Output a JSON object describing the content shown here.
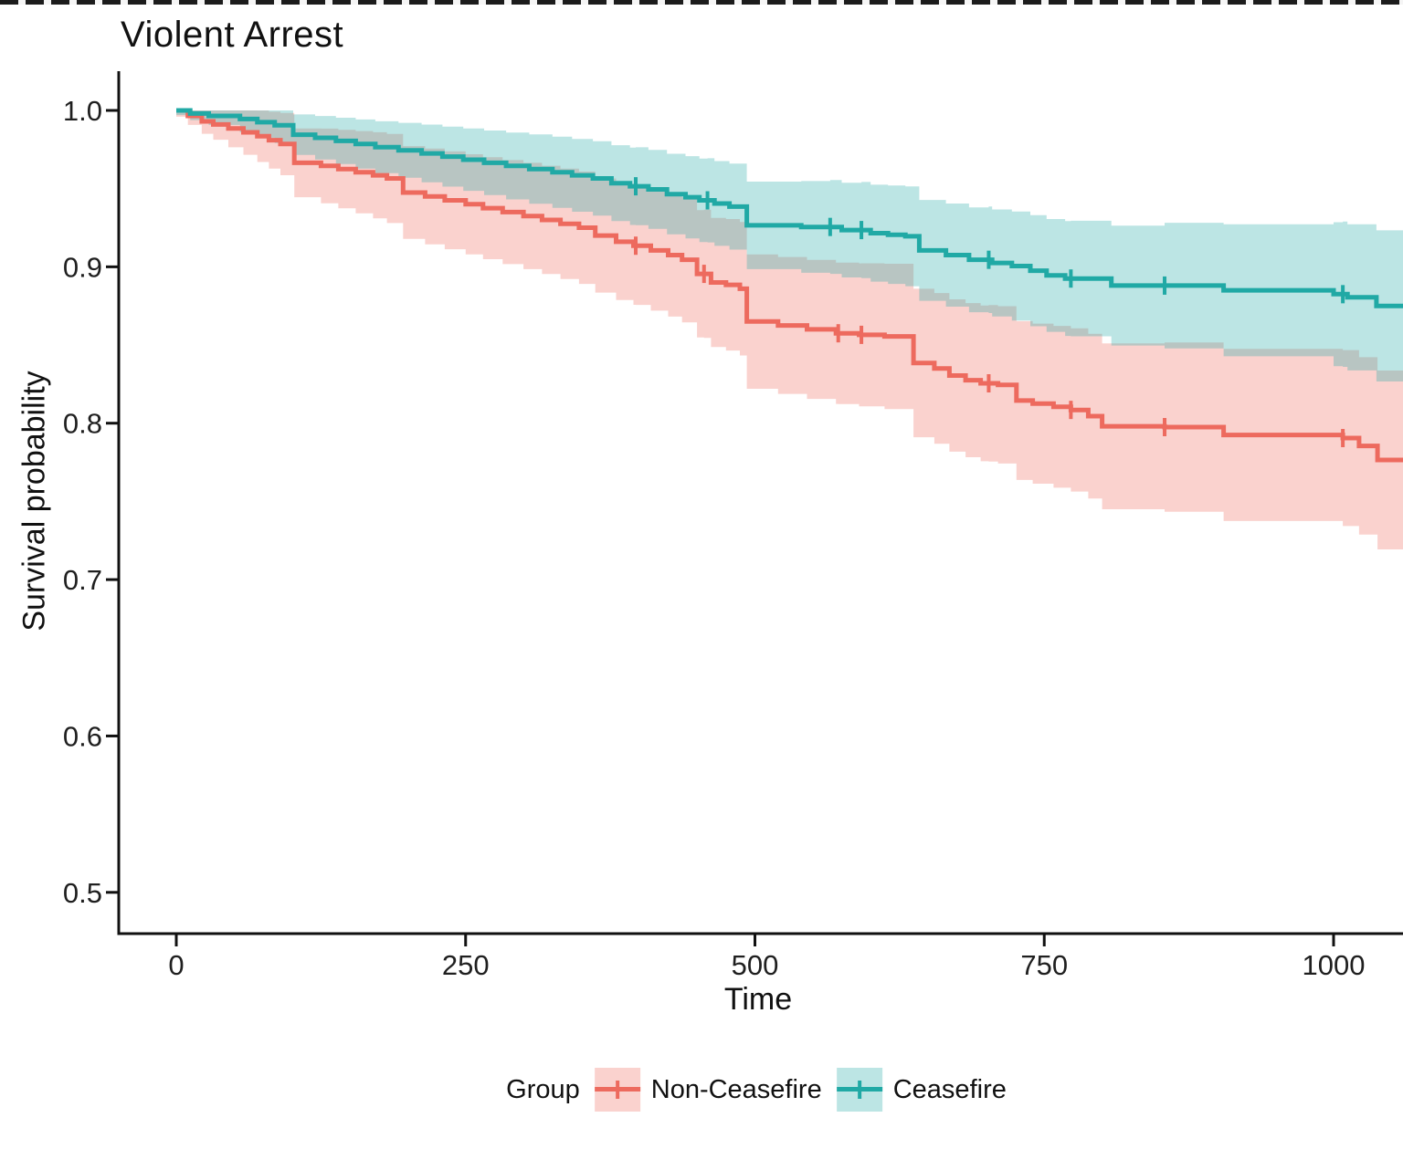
{
  "chart_data": {
    "type": "line",
    "subtype": "kaplan_meier_step",
    "title": "Violent Arrest",
    "xlabel": "Time",
    "ylabel": "Survival probability",
    "x_ticks": [
      0,
      250,
      500,
      750,
      1000
    ],
    "y_ticks": [
      {
        "value": 1.0,
        "label": "1.0"
      },
      {
        "value": 0.9,
        "label": "0.9"
      },
      {
        "value": 0.8,
        "label": "0.8"
      },
      {
        "value": 0.7,
        "label": "0.7"
      },
      {
        "value": 0.6,
        "label": "0.6"
      },
      {
        "value": 0.5,
        "label": "0.5"
      }
    ],
    "xlim": [
      0,
      1064
    ],
    "ylim": [
      0.474,
      1.027
    ],
    "grid": false,
    "axis_color": "#111111",
    "tick_text_color": "#1f1f1f",
    "legend": {
      "title": "Group",
      "position": "bottom"
    },
    "series": [
      {
        "name": "Non-Ceasefire",
        "color": "#ED6A5E",
        "ribbon_opacity": 0.3,
        "steps": [
          [
            0,
            1.0
          ],
          [
            10,
            0.9965
          ],
          [
            22,
            0.993
          ],
          [
            32,
            0.991
          ],
          [
            45,
            0.9885
          ],
          [
            58,
            0.986
          ],
          [
            70,
            0.9835
          ],
          [
            80,
            0.981
          ],
          [
            90,
            0.9785
          ],
          [
            102,
            0.9665
          ],
          [
            125,
            0.9645
          ],
          [
            140,
            0.9625
          ],
          [
            155,
            0.9605
          ],
          [
            170,
            0.9585
          ],
          [
            182,
            0.9565
          ],
          [
            196,
            0.9475
          ],
          [
            215,
            0.945
          ],
          [
            232,
            0.9425
          ],
          [
            250,
            0.94
          ],
          [
            265,
            0.9375
          ],
          [
            282,
            0.935
          ],
          [
            300,
            0.9325
          ],
          [
            316,
            0.93
          ],
          [
            332,
            0.9275
          ],
          [
            348,
            0.925
          ],
          [
            362,
            0.92
          ],
          [
            380,
            0.916
          ],
          [
            395,
            0.9135
          ],
          [
            410,
            0.9105
          ],
          [
            425,
            0.9075
          ],
          [
            437,
            0.9045
          ],
          [
            450,
            0.8955
          ],
          [
            462,
            0.89
          ],
          [
            475,
            0.8885
          ],
          [
            487,
            0.886
          ],
          [
            493,
            0.865
          ],
          [
            520,
            0.8625
          ],
          [
            545,
            0.86
          ],
          [
            570,
            0.8575
          ],
          [
            590,
            0.8565
          ],
          [
            612,
            0.8555
          ],
          [
            637,
            0.8385
          ],
          [
            655,
            0.835
          ],
          [
            668,
            0.8305
          ],
          [
            682,
            0.8275
          ],
          [
            695,
            0.8255
          ],
          [
            710,
            0.8245
          ],
          [
            726,
            0.8145
          ],
          [
            740,
            0.8125
          ],
          [
            758,
            0.8105
          ],
          [
            773,
            0.8085
          ],
          [
            788,
            0.8045
          ],
          [
            800,
            0.798
          ],
          [
            854,
            0.7975
          ],
          [
            905,
            0.7925
          ],
          [
            1008,
            0.7905
          ],
          [
            1022,
            0.7855
          ],
          [
            1038,
            0.7765
          ],
          [
            1064,
            0.776
          ]
        ],
        "censor_times": [
          397,
          456,
          572,
          592,
          702,
          773,
          854,
          1008
        ],
        "ci_halfwidth": [
          [
            0,
            0.004
          ],
          [
            50,
            0.013
          ],
          [
            102,
            0.022
          ],
          [
            200,
            0.03
          ],
          [
            300,
            0.034
          ],
          [
            400,
            0.038
          ],
          [
            493,
            0.043
          ],
          [
            600,
            0.046
          ],
          [
            700,
            0.05
          ],
          [
            800,
            0.053
          ],
          [
            900,
            0.055
          ],
          [
            1000,
            0.056
          ],
          [
            1064,
            0.058
          ]
        ]
      },
      {
        "name": "Ceasefire",
        "color": "#20A9A5",
        "ribbon_opacity": 0.3,
        "steps": [
          [
            0,
            1.0
          ],
          [
            12,
            0.998
          ],
          [
            28,
            0.9965
          ],
          [
            55,
            0.9945
          ],
          [
            70,
            0.9925
          ],
          [
            85,
            0.9905
          ],
          [
            101,
            0.9845
          ],
          [
            120,
            0.9825
          ],
          [
            138,
            0.9805
          ],
          [
            155,
            0.9785
          ],
          [
            172,
            0.9765
          ],
          [
            192,
            0.9745
          ],
          [
            212,
            0.9725
          ],
          [
            230,
            0.9705
          ],
          [
            248,
            0.9685
          ],
          [
            266,
            0.9665
          ],
          [
            285,
            0.9645
          ],
          [
            305,
            0.9625
          ],
          [
            325,
            0.9605
          ],
          [
            342,
            0.9585
          ],
          [
            360,
            0.9565
          ],
          [
            376,
            0.9535
          ],
          [
            392,
            0.9515
          ],
          [
            408,
            0.9495
          ],
          [
            424,
            0.9465
          ],
          [
            440,
            0.9445
          ],
          [
            452,
            0.9425
          ],
          [
            465,
            0.9405
          ],
          [
            478,
            0.9385
          ],
          [
            493,
            0.9265
          ],
          [
            540,
            0.9255
          ],
          [
            575,
            0.9235
          ],
          [
            600,
            0.9215
          ],
          [
            615,
            0.9205
          ],
          [
            630,
            0.9195
          ],
          [
            642,
            0.9105
          ],
          [
            665,
            0.9075
          ],
          [
            685,
            0.9045
          ],
          [
            705,
            0.9025
          ],
          [
            722,
            0.9005
          ],
          [
            738,
            0.8975
          ],
          [
            752,
            0.8945
          ],
          [
            768,
            0.8925
          ],
          [
            808,
            0.888
          ],
          [
            905,
            0.885
          ],
          [
            1000,
            0.8825
          ],
          [
            1012,
            0.8805
          ],
          [
            1037,
            0.875
          ],
          [
            1064,
            0.874
          ]
        ],
        "censor_times": [
          397,
          459,
          565,
          592,
          702,
          773,
          854,
          1008
        ],
        "ci_halfwidth": [
          [
            0,
            0.003
          ],
          [
            50,
            0.008
          ],
          [
            102,
            0.013
          ],
          [
            200,
            0.018
          ],
          [
            300,
            0.022
          ],
          [
            400,
            0.025
          ],
          [
            493,
            0.028
          ],
          [
            600,
            0.031
          ],
          [
            700,
            0.034
          ],
          [
            800,
            0.038
          ],
          [
            900,
            0.042
          ],
          [
            1000,
            0.046
          ],
          [
            1064,
            0.05
          ]
        ]
      }
    ]
  }
}
